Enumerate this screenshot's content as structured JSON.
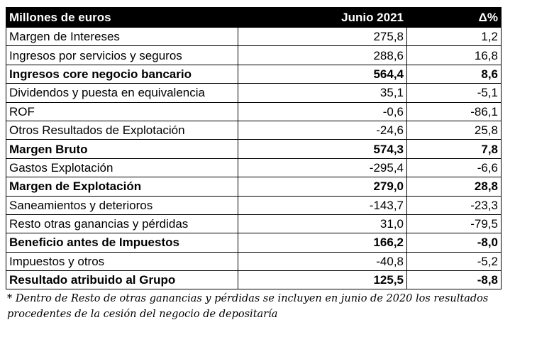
{
  "table": {
    "headers": [
      "Millones de euros",
      "Junio 2021",
      "Δ%"
    ],
    "rows": [
      {
        "label": "Margen de Intereses",
        "value": "275,8",
        "change": "1,2",
        "bold": false
      },
      {
        "label": "Ingresos por servicios y seguros",
        "value": "288,6",
        "change": "16,8",
        "bold": false
      },
      {
        "label": "Ingresos core negocio bancario",
        "value": "564,4",
        "change": "8,6",
        "bold": true
      },
      {
        "label": "Dividendos y puesta en equivalencia",
        "value": "35,1",
        "change": "-5,1",
        "bold": false
      },
      {
        "label": "ROF",
        "value": "-0,6",
        "change": "-86,1",
        "bold": false
      },
      {
        "label": "Otros Resultados de Explotación",
        "value": "-24,6",
        "change": "25,8",
        "bold": false
      },
      {
        "label": "Margen Bruto",
        "value": "574,3",
        "change": "7,8",
        "bold": true
      },
      {
        "label": "Gastos Explotación",
        "value": "-295,4",
        "change": "-6,6",
        "bold": false
      },
      {
        "label": "Margen de Explotación",
        "value": "279,0",
        "change": "28,8",
        "bold": true
      },
      {
        "label": "Saneamientos y deterioros",
        "value": "-143,7",
        "change": "-23,3",
        "bold": false
      },
      {
        "label": "Resto otras ganancias y pérdidas",
        "value": "31,0",
        "change": "-79,5",
        "bold": false
      },
      {
        "label": "Beneficio antes de Impuestos",
        "value": "166,2",
        "change": "-8,0",
        "bold": true
      },
      {
        "label": "Impuestos y otros",
        "value": "-40,8",
        "change": "-5,2",
        "bold": false
      },
      {
        "label": "Resultado atribuido al Grupo",
        "value": "125,5",
        "change": "-8,8",
        "bold": true
      }
    ]
  },
  "footnote": {
    "line1": "* Dentro de Resto de otras ganancias y pérdidas se incluyen en junio de 2020 los resultados",
    "line2": "procedentes de la cesión del negocio de depositaría"
  }
}
